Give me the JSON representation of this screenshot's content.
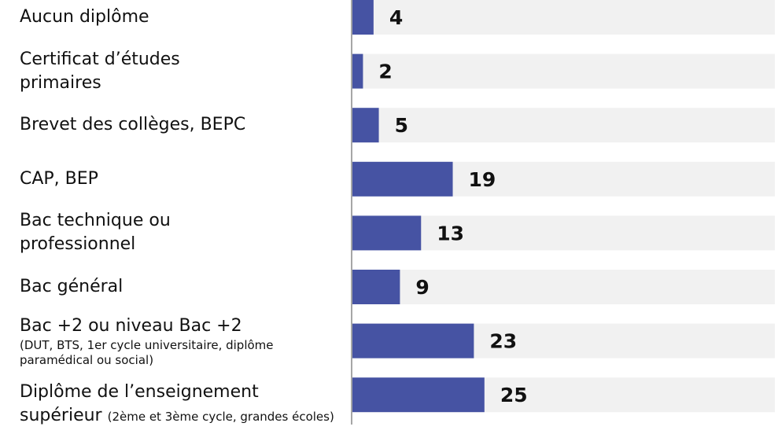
{
  "chart_data": {
    "type": "bar",
    "orientation": "horizontal",
    "categories": [
      "Aucun diplôme",
      "Certificat d’études primaires",
      "Brevet des collèges, BEPC",
      "CAP, BEP",
      "Bac technique ou professionnel",
      "Bac général",
      "Bac +2 ou niveau Bac +2",
      "Diplôme de l’enseignement supérieur"
    ],
    "category_notes": [
      null,
      null,
      null,
      null,
      null,
      null,
      "(DUT, BTS, 1er cycle universitaire, diplôme paramédical ou social)",
      "(2ème et 3ème cycle, grandes écoles)"
    ],
    "values": [
      4,
      2,
      5,
      19,
      13,
      9,
      23,
      25
    ],
    "color": "#4653a3",
    "track_color": "#f1f1f1",
    "xlim": [
      0,
      80
    ]
  }
}
